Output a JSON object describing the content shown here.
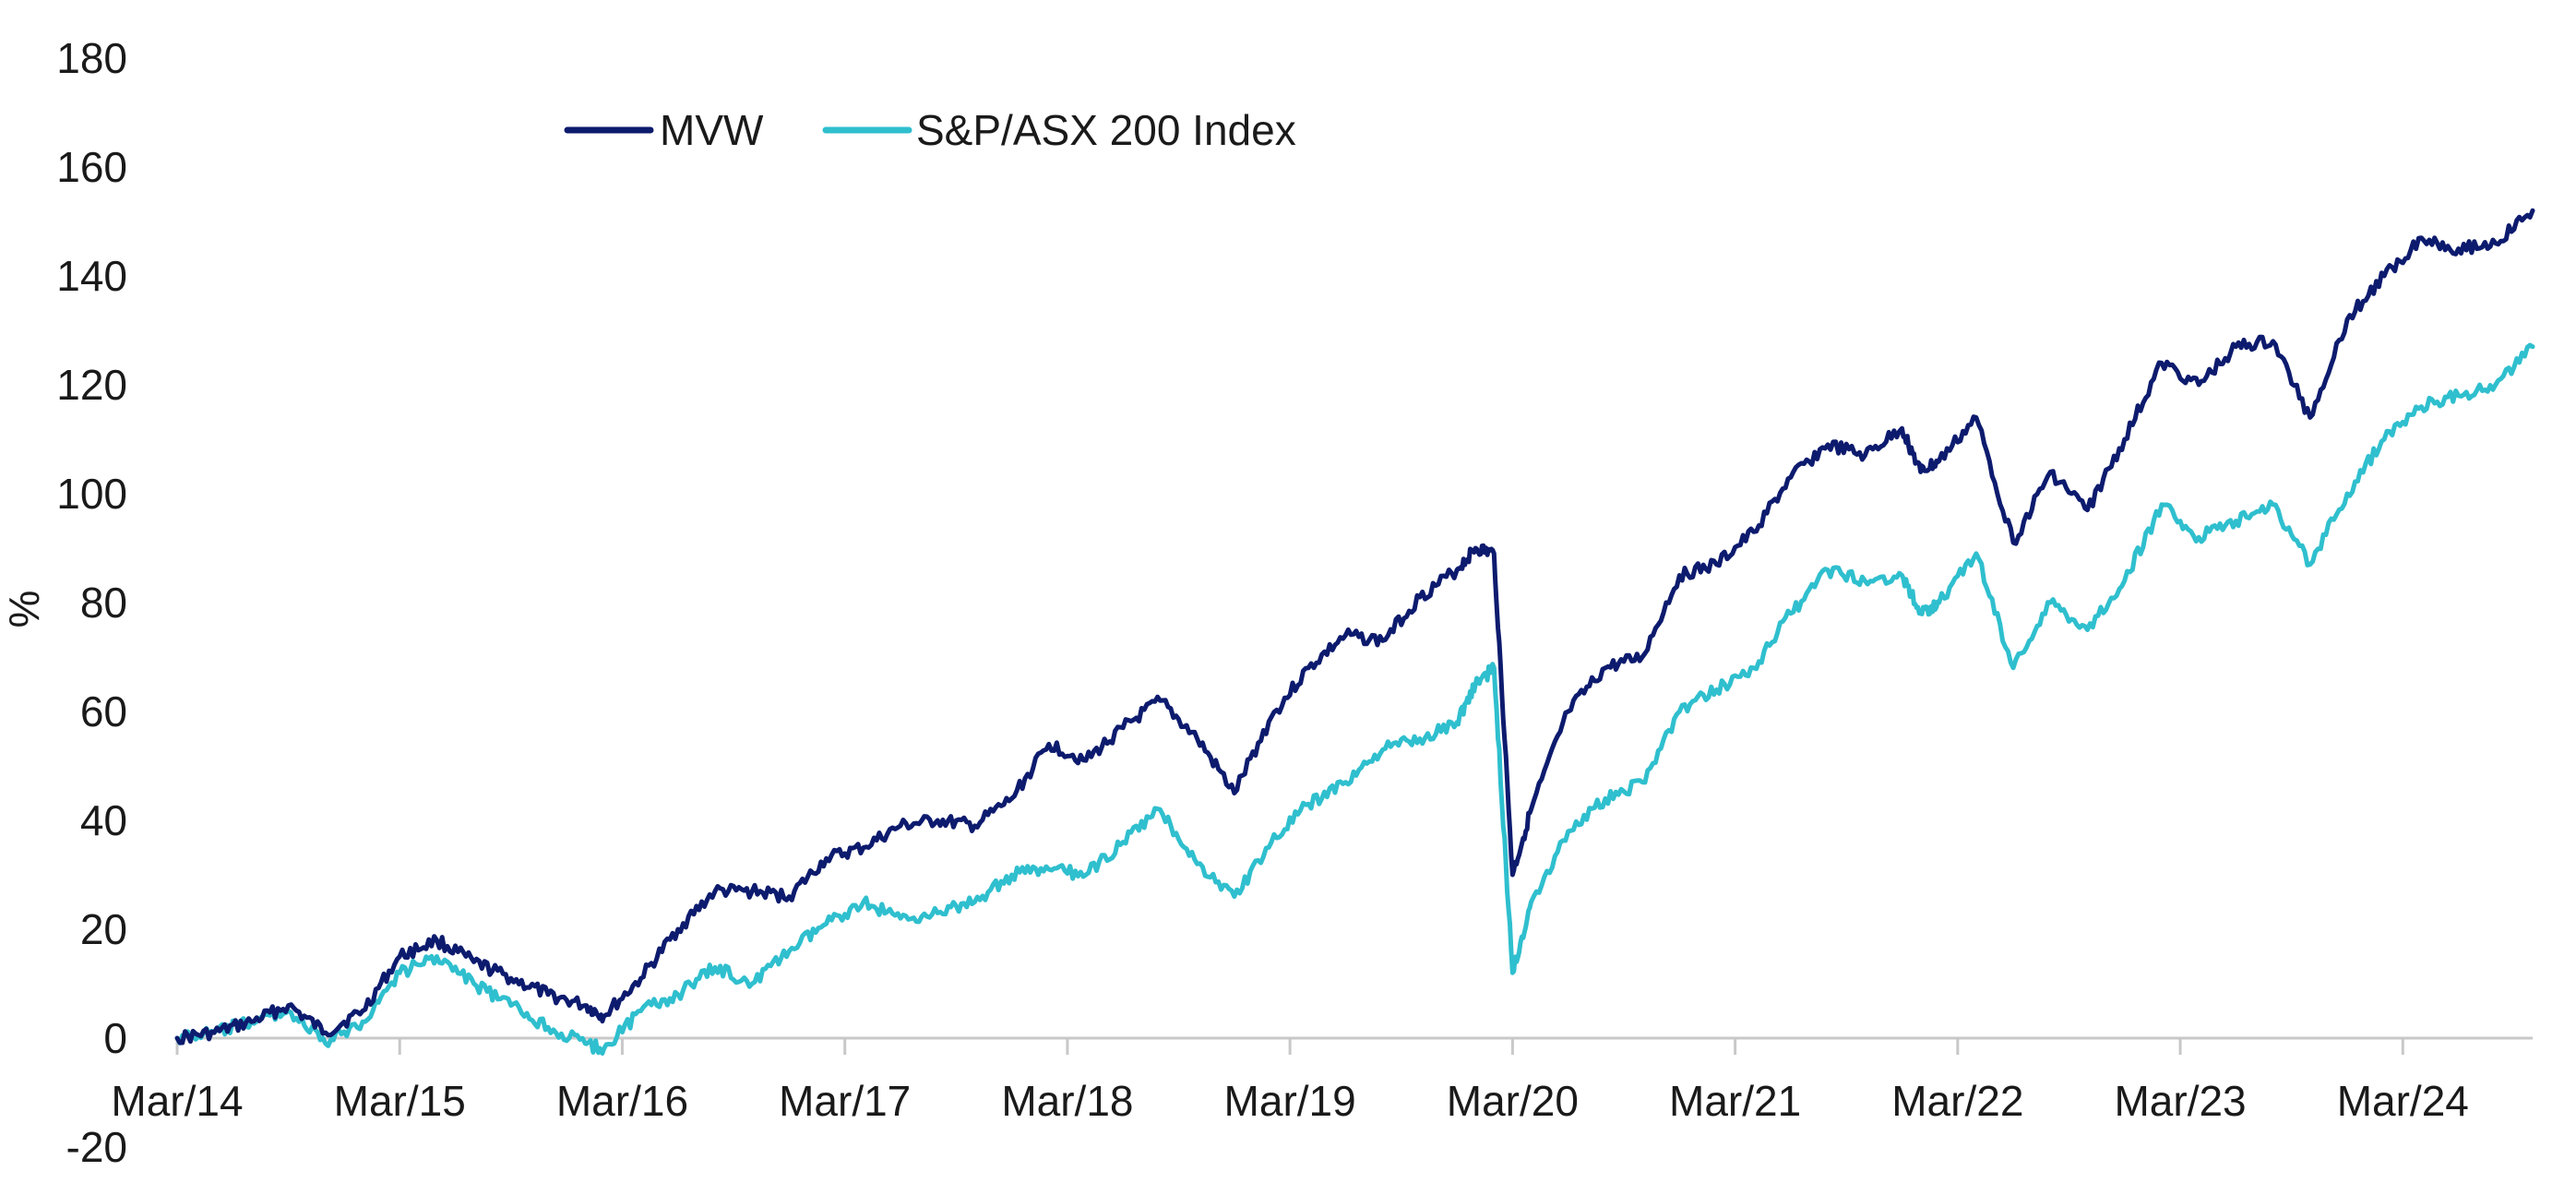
{
  "chart_data": {
    "type": "line",
    "title": "",
    "xlabel": "",
    "ylabel": "%",
    "ylim": [
      -20,
      180
    ],
    "yticks": [
      -20,
      0,
      20,
      40,
      60,
      80,
      100,
      120,
      140,
      160,
      180
    ],
    "x_tick_labels": [
      "Mar/14",
      "Mar/15",
      "Mar/16",
      "Mar/17",
      "Mar/18",
      "Mar/19",
      "Mar/20",
      "Mar/21",
      "Mar/22",
      "Mar/23",
      "Mar/24"
    ],
    "x_range": [
      "2014-03-01",
      "2024-10-01"
    ],
    "grid": false,
    "legend_position": "top-left",
    "series": [
      {
        "name": "MVW",
        "color": "#0d1b6e",
        "points": [
          [
            "2014-03",
            0
          ],
          [
            "2014-05",
            1
          ],
          [
            "2014-07",
            3
          ],
          [
            "2014-09",
            6
          ],
          [
            "2014-11",
            1
          ],
          [
            "2015-01",
            5
          ],
          [
            "2015-03",
            15
          ],
          [
            "2015-05",
            18
          ],
          [
            "2015-07",
            14
          ],
          [
            "2015-09",
            11
          ],
          [
            "2015-11",
            8
          ],
          [
            "2016-01",
            6
          ],
          [
            "2016-02",
            4
          ],
          [
            "2016-04",
            11
          ],
          [
            "2016-06",
            20
          ],
          [
            "2016-08",
            27
          ],
          [
            "2016-10",
            27
          ],
          [
            "2016-12",
            26
          ],
          [
            "2017-02",
            33
          ],
          [
            "2017-04",
            35
          ],
          [
            "2017-06",
            39
          ],
          [
            "2017-08",
            40
          ],
          [
            "2017-10",
            39
          ],
          [
            "2017-12",
            44
          ],
          [
            "2018-02",
            54
          ],
          [
            "2018-04",
            51
          ],
          [
            "2018-06",
            57
          ],
          [
            "2018-08",
            62
          ],
          [
            "2018-10",
            55
          ],
          [
            "2018-12",
            45
          ],
          [
            "2019-02",
            59
          ],
          [
            "2019-04",
            68
          ],
          [
            "2019-06",
            74
          ],
          [
            "2019-08",
            73
          ],
          [
            "2019-10",
            81
          ],
          [
            "2019-12",
            86
          ],
          [
            "2020-01",
            90
          ],
          [
            "2020-02",
            89
          ],
          [
            "2020-03",
            30
          ],
          [
            "2020-04",
            42
          ],
          [
            "2020-06",
            60
          ],
          [
            "2020-08",
            68
          ],
          [
            "2020-10",
            70
          ],
          [
            "2020-12",
            85
          ],
          [
            "2021-02",
            87
          ],
          [
            "2021-04",
            93
          ],
          [
            "2021-06",
            103
          ],
          [
            "2021-08",
            109
          ],
          [
            "2021-10",
            107
          ],
          [
            "2021-12",
            112
          ],
          [
            "2022-01",
            104
          ],
          [
            "2022-02",
            106
          ],
          [
            "2022-04",
            114
          ],
          [
            "2022-06",
            91
          ],
          [
            "2022-08",
            104
          ],
          [
            "2022-10",
            97
          ],
          [
            "2022-12",
            110
          ],
          [
            "2023-02",
            124
          ],
          [
            "2023-04",
            120
          ],
          [
            "2023-06",
            127
          ],
          [
            "2023-08",
            128
          ],
          [
            "2023-10",
            114
          ],
          [
            "2023-12",
            132
          ],
          [
            "2024-02",
            140
          ],
          [
            "2024-04",
            147
          ],
          [
            "2024-06",
            145
          ],
          [
            "2024-08",
            146
          ],
          [
            "2024-10",
            152
          ]
        ]
      },
      {
        "name": "S&P/ASX 200 Index",
        "color": "#2fbfce",
        "points": [
          [
            "2014-03",
            0
          ],
          [
            "2014-05",
            1
          ],
          [
            "2014-07",
            3
          ],
          [
            "2014-09",
            5
          ],
          [
            "2014-11",
            -1
          ],
          [
            "2015-01",
            3
          ],
          [
            "2015-03",
            12
          ],
          [
            "2015-05",
            15
          ],
          [
            "2015-07",
            10
          ],
          [
            "2015-09",
            6
          ],
          [
            "2015-11",
            2
          ],
          [
            "2016-01",
            -1
          ],
          [
            "2016-02",
            -2
          ],
          [
            "2016-04",
            5
          ],
          [
            "2016-06",
            8
          ],
          [
            "2016-08",
            13
          ],
          [
            "2016-10",
            10
          ],
          [
            "2016-12",
            16
          ],
          [
            "2017-02",
            21
          ],
          [
            "2017-04",
            25
          ],
          [
            "2017-06",
            22
          ],
          [
            "2017-08",
            23
          ],
          [
            "2017-10",
            25
          ],
          [
            "2017-12",
            30
          ],
          [
            "2018-02",
            31
          ],
          [
            "2018-04",
            30
          ],
          [
            "2018-06",
            36
          ],
          [
            "2018-08",
            42
          ],
          [
            "2018-10",
            32
          ],
          [
            "2018-12",
            26
          ],
          [
            "2019-02",
            36
          ],
          [
            "2019-04",
            43
          ],
          [
            "2019-06",
            47
          ],
          [
            "2019-08",
            53
          ],
          [
            "2019-10",
            55
          ],
          [
            "2019-12",
            58
          ],
          [
            "2020-01",
            65
          ],
          [
            "2020-02",
            68
          ],
          [
            "2020-03",
            12
          ],
          [
            "2020-04",
            25
          ],
          [
            "2020-06",
            38
          ],
          [
            "2020-08",
            44
          ],
          [
            "2020-10",
            47
          ],
          [
            "2020-12",
            60
          ],
          [
            "2021-02",
            64
          ],
          [
            "2021-04",
            68
          ],
          [
            "2021-06",
            78
          ],
          [
            "2021-08",
            86
          ],
          [
            "2021-10",
            84
          ],
          [
            "2021-12",
            85
          ],
          [
            "2022-01",
            78
          ],
          [
            "2022-02",
            80
          ],
          [
            "2022-04",
            89
          ],
          [
            "2022-06",
            68
          ],
          [
            "2022-08",
            80
          ],
          [
            "2022-10",
            75
          ],
          [
            "2022-12",
            84
          ],
          [
            "2023-02",
            98
          ],
          [
            "2023-04",
            92
          ],
          [
            "2023-06",
            95
          ],
          [
            "2023-08",
            98
          ],
          [
            "2023-10",
            87
          ],
          [
            "2023-12",
            100
          ],
          [
            "2024-02",
            110
          ],
          [
            "2024-04",
            116
          ],
          [
            "2024-06",
            118
          ],
          [
            "2024-08",
            120
          ],
          [
            "2024-10",
            127
          ]
        ]
      }
    ]
  }
}
